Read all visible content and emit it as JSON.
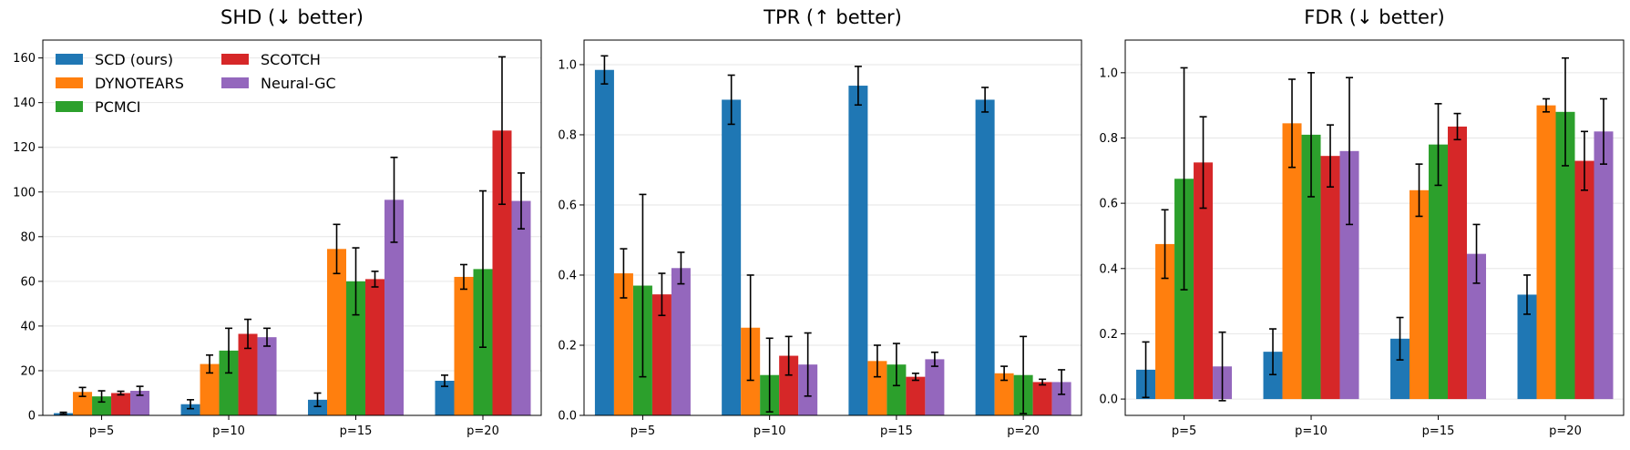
{
  "chart_data": [
    {
      "type": "bar",
      "title": "SHD (↓ better)",
      "xlabel": "",
      "ylabel": "",
      "categories": [
        "p=5",
        "p=10",
        "p=15",
        "p=20"
      ],
      "ylim": [
        0,
        168
      ],
      "yticks": [
        0,
        20,
        40,
        60,
        80,
        100,
        120,
        140,
        160
      ],
      "ytick_labels": [
        "0",
        "20",
        "40",
        "60",
        "80",
        "100",
        "120",
        "140",
        "160"
      ],
      "grid": true,
      "legend": "top-left",
      "series": [
        {
          "name": "SCD (ours)",
          "color": "#1f77b4",
          "values": [
            1.0,
            5.0,
            7.0,
            15.5
          ],
          "errors": [
            0.4,
            2.0,
            3.0,
            2.5
          ]
        },
        {
          "name": "DYNOTEARS",
          "color": "#ff7f0e",
          "values": [
            10.5,
            23.0,
            74.5,
            62.0
          ],
          "errors": [
            2.0,
            4.0,
            11.0,
            5.5
          ]
        },
        {
          "name": "PCMCI",
          "color": "#2ca02c",
          "values": [
            8.5,
            29.0,
            60.0,
            65.5
          ],
          "errors": [
            2.5,
            10.0,
            15.0,
            35.0
          ]
        },
        {
          "name": "SCOTCH",
          "color": "#d62728",
          "values": [
            10.0,
            36.5,
            61.0,
            127.5
          ],
          "errors": [
            0.8,
            6.5,
            3.5,
            33.0
          ]
        },
        {
          "name": "Neural-GC",
          "color": "#9467bd",
          "values": [
            11.0,
            35.0,
            96.5,
            96.0
          ],
          "errors": [
            2.0,
            4.0,
            19.0,
            12.5
          ]
        }
      ]
    },
    {
      "type": "bar",
      "title": "TPR (↑ better)",
      "xlabel": "",
      "ylabel": "",
      "categories": [
        "p=5",
        "p=10",
        "p=15",
        "p=20"
      ],
      "ylim": [
        0,
        1.07
      ],
      "yticks": [
        0,
        0.2,
        0.4,
        0.6,
        0.8,
        1.0
      ],
      "ytick_labels": [
        "0.0",
        "0.2",
        "0.4",
        "0.6",
        "0.8",
        "1.0"
      ],
      "grid": true,
      "series": [
        {
          "name": "SCD (ours)",
          "color": "#1f77b4",
          "values": [
            0.985,
            0.9,
            0.94,
            0.9
          ],
          "errors": [
            0.04,
            0.07,
            0.055,
            0.035
          ]
        },
        {
          "name": "DYNOTEARS",
          "color": "#ff7f0e",
          "values": [
            0.405,
            0.25,
            0.155,
            0.12
          ],
          "errors": [
            0.07,
            0.15,
            0.045,
            0.02
          ]
        },
        {
          "name": "PCMCI",
          "color": "#2ca02c",
          "values": [
            0.37,
            0.115,
            0.145,
            0.115
          ],
          "errors": [
            0.26,
            0.105,
            0.06,
            0.11
          ]
        },
        {
          "name": "SCOTCH",
          "color": "#d62728",
          "values": [
            0.345,
            0.17,
            0.11,
            0.095
          ],
          "errors": [
            0.06,
            0.055,
            0.01,
            0.008
          ]
        },
        {
          "name": "Neural-GC",
          "color": "#9467bd",
          "values": [
            0.42,
            0.145,
            0.16,
            0.095
          ],
          "errors": [
            0.045,
            0.09,
            0.02,
            0.035
          ]
        }
      ]
    },
    {
      "type": "bar",
      "title": "FDR (↓ better)",
      "xlabel": "",
      "ylabel": "",
      "categories": [
        "p=5",
        "p=10",
        "p=15",
        "p=20"
      ],
      "ylim": [
        -0.05,
        1.1
      ],
      "yticks": [
        0,
        0.2,
        0.4,
        0.6,
        0.8,
        1.0
      ],
      "ytick_labels": [
        "0.0",
        "0.2",
        "0.4",
        "0.6",
        "0.8",
        "1.0"
      ],
      "grid": true,
      "series": [
        {
          "name": "SCD (ours)",
          "color": "#1f77b4",
          "values": [
            0.09,
            0.145,
            0.185,
            0.32
          ],
          "errors": [
            0.085,
            0.07,
            0.065,
            0.06
          ]
        },
        {
          "name": "DYNOTEARS",
          "color": "#ff7f0e",
          "values": [
            0.475,
            0.845,
            0.64,
            0.9
          ],
          "errors": [
            0.105,
            0.135,
            0.08,
            0.02
          ]
        },
        {
          "name": "PCMCI",
          "color": "#2ca02c",
          "values": [
            0.675,
            0.81,
            0.78,
            0.88
          ],
          "errors": [
            0.34,
            0.19,
            0.125,
            0.165
          ]
        },
        {
          "name": "SCOTCH",
          "color": "#d62728",
          "values": [
            0.725,
            0.745,
            0.835,
            0.73
          ],
          "errors": [
            0.14,
            0.095,
            0.04,
            0.09
          ]
        },
        {
          "name": "Neural-GC",
          "color": "#9467bd",
          "values": [
            0.1,
            0.76,
            0.445,
            0.82
          ],
          "errors": [
            0.105,
            0.225,
            0.09,
            0.1
          ]
        }
      ]
    }
  ]
}
